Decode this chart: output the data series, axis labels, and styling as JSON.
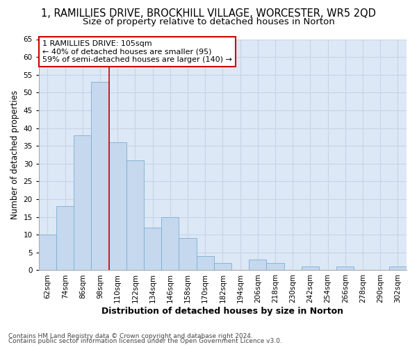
{
  "title_line1": "1, RAMILLIES DRIVE, BROCKHILL VILLAGE, WORCESTER, WR5 2QD",
  "title_line2": "Size of property relative to detached houses in Norton",
  "xlabel": "Distribution of detached houses by size in Norton",
  "ylabel": "Number of detached properties",
  "categories": [
    "62sqm",
    "74sqm",
    "86sqm",
    "98sqm",
    "110sqm",
    "122sqm",
    "134sqm",
    "146sqm",
    "158sqm",
    "170sqm",
    "182sqm",
    "194sqm",
    "206sqm",
    "218sqm",
    "230sqm",
    "242sqm",
    "254sqm",
    "266sqm",
    "278sqm",
    "290sqm",
    "302sqm"
  ],
  "values": [
    10,
    18,
    38,
    53,
    36,
    31,
    12,
    15,
    9,
    4,
    2,
    0,
    3,
    2,
    0,
    1,
    0,
    1,
    0,
    0,
    1
  ],
  "bar_color": "#c5d8ee",
  "bar_edge_color": "#7bafd4",
  "vline_x": 3.5,
  "vline_color": "#cc0000",
  "annotation_text": "1 RAMILLIES DRIVE: 105sqm\n← 40% of detached houses are smaller (95)\n59% of semi-detached houses are larger (140) →",
  "annotation_box_facecolor": "#ffffff",
  "annotation_box_edgecolor": "#cc0000",
  "ylim": [
    0,
    65
  ],
  "yticks": [
    0,
    5,
    10,
    15,
    20,
    25,
    30,
    35,
    40,
    45,
    50,
    55,
    60,
    65
  ],
  "grid_color": "#c8d4e8",
  "bg_color": "#dce8f5",
  "footer_line1": "Contains HM Land Registry data © Crown copyright and database right 2024.",
  "footer_line2": "Contains public sector information licensed under the Open Government Licence v3.0.",
  "title1_fontsize": 10.5,
  "title2_fontsize": 9.5,
  "xlabel_fontsize": 9,
  "ylabel_fontsize": 8.5,
  "tick_fontsize": 7.5,
  "annotation_fontsize": 8,
  "footer_fontsize": 6.5
}
